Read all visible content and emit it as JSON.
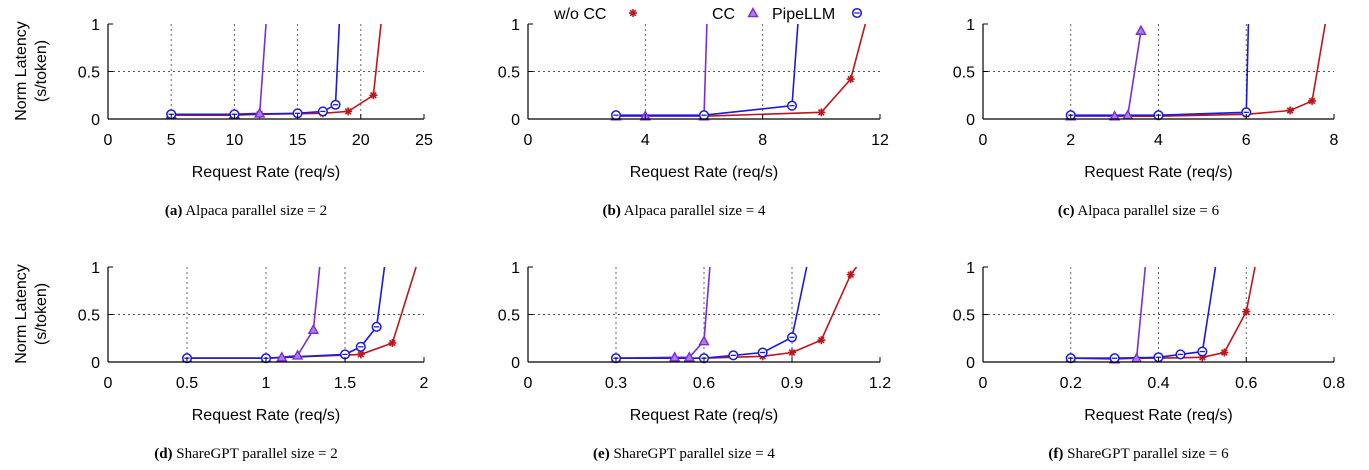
{
  "legend": {
    "items": [
      {
        "label": "w/o CC",
        "color": "#c0141c",
        "marker": "star"
      },
      {
        "label": "CC",
        "color": "#7a2fd6",
        "marker": "triangle"
      },
      {
        "label": "PipeLLM",
        "color": "#1a1adf",
        "marker": "circle"
      }
    ]
  },
  "ylabel_line1": "Norm Latency",
  "ylabel_line2": "(s/token)",
  "chart_data": [
    {
      "type": "line",
      "xlabel": "Request Rate (req/s)",
      "caption_tag": "(a)",
      "caption_text": "Alpaca parallel size = 2",
      "xlim": [
        0,
        25
      ],
      "xticks": [
        "0",
        "5",
        "10",
        "15",
        "20",
        "25"
      ],
      "ylim": [
        0,
        1
      ],
      "yticks": [
        "0",
        "0.5",
        "1"
      ],
      "grid": true,
      "series": [
        {
          "name": "w/o CC",
          "x": [
            5,
            10,
            12,
            17,
            19,
            21,
            21.6
          ],
          "y": [
            0.04,
            0.04,
            0.05,
            0.06,
            0.08,
            0.25,
            1.0
          ]
        },
        {
          "name": "CC",
          "x": [
            5,
            10,
            12,
            12.5
          ],
          "y": [
            0.05,
            0.05,
            0.06,
            1.0
          ]
        },
        {
          "name": "PipeLLM",
          "x": [
            5,
            10,
            15,
            17,
            18,
            18.3
          ],
          "y": [
            0.05,
            0.05,
            0.06,
            0.08,
            0.15,
            1.0
          ]
        }
      ]
    },
    {
      "type": "line",
      "xlabel": "Request Rate (req/s)",
      "caption_tag": "(b)",
      "caption_text": "Alpaca parallel size = 4",
      "xlim": [
        0,
        12
      ],
      "xticks": [
        "0",
        "4",
        "8",
        "12"
      ],
      "ylim": [
        0,
        1
      ],
      "yticks": [
        "0",
        "0.5",
        "1"
      ],
      "grid": true,
      "series": [
        {
          "name": "w/o CC",
          "x": [
            3,
            6,
            10,
            11,
            11.5
          ],
          "y": [
            0.03,
            0.03,
            0.07,
            0.42,
            1.0
          ]
        },
        {
          "name": "CC",
          "x": [
            3,
            4,
            6,
            6.1
          ],
          "y": [
            0.03,
            0.03,
            0.03,
            1.0
          ]
        },
        {
          "name": "PipeLLM",
          "x": [
            3,
            6,
            9,
            9.2
          ],
          "y": [
            0.04,
            0.04,
            0.14,
            1.0
          ]
        }
      ]
    },
    {
      "type": "line",
      "xlabel": "Request Rate (req/s)",
      "caption_tag": "(c)",
      "caption_text": "Alpaca parallel size = 6",
      "xlim": [
        0,
        8
      ],
      "xticks": [
        "0",
        "2",
        "4",
        "6",
        "8"
      ],
      "ylim": [
        0,
        1
      ],
      "yticks": [
        "0",
        "0.5",
        "1"
      ],
      "grid": true,
      "series": [
        {
          "name": "w/o CC",
          "x": [
            2,
            4,
            6,
            7,
            7.5,
            7.8
          ],
          "y": [
            0.03,
            0.03,
            0.05,
            0.09,
            0.19,
            1.0
          ]
        },
        {
          "name": "CC",
          "x": [
            2,
            3,
            3.3,
            3.6
          ],
          "y": [
            0.03,
            0.03,
            0.04,
            0.93
          ]
        },
        {
          "name": "PipeLLM",
          "x": [
            2,
            4,
            6,
            6.05
          ],
          "y": [
            0.04,
            0.04,
            0.07,
            1.0
          ]
        }
      ]
    },
    {
      "type": "line",
      "xlabel": "Request Rate (req/s)",
      "caption_tag": "(d)",
      "caption_text": "ShareGPT parallel size = 2",
      "xlim": [
        0,
        2
      ],
      "xticks": [
        "0",
        "0.5",
        "1",
        "1.5",
        "2"
      ],
      "ylim": [
        0,
        1
      ],
      "yticks": [
        "0",
        "0.5",
        "1"
      ],
      "grid": true,
      "series": [
        {
          "name": "w/o CC",
          "x": [
            0.5,
            1.0,
            1.6,
            1.8,
            1.95
          ],
          "y": [
            0.04,
            0.04,
            0.08,
            0.2,
            1.0
          ]
        },
        {
          "name": "CC",
          "x": [
            0.5,
            1.0,
            1.1,
            1.2,
            1.3,
            1.34
          ],
          "y": [
            0.04,
            0.04,
            0.05,
            0.07,
            0.34,
            1.0
          ]
        },
        {
          "name": "PipeLLM",
          "x": [
            0.5,
            1.0,
            1.5,
            1.6,
            1.7,
            1.75
          ],
          "y": [
            0.04,
            0.04,
            0.08,
            0.16,
            0.37,
            1.0
          ]
        }
      ]
    },
    {
      "type": "line",
      "xlabel": "Request Rate (req/s)",
      "caption_tag": "(e)",
      "caption_text": "ShareGPT parallel size = 4",
      "xlim": [
        0,
        1.2
      ],
      "xticks": [
        "0",
        "0.3",
        "0.6",
        "0.9",
        "1.2"
      ],
      "ylim": [
        0,
        1
      ],
      "yticks": [
        "0",
        "0.5",
        "1"
      ],
      "grid": true,
      "series": [
        {
          "name": "w/o CC",
          "x": [
            0.3,
            0.6,
            0.8,
            0.9,
            1.0,
            1.1,
            1.12
          ],
          "y": [
            0.04,
            0.04,
            0.06,
            0.1,
            0.23,
            0.92,
            1.0
          ]
        },
        {
          "name": "CC",
          "x": [
            0.3,
            0.5,
            0.55,
            0.6,
            0.62
          ],
          "y": [
            0.04,
            0.05,
            0.05,
            0.22,
            1.0
          ]
        },
        {
          "name": "PipeLLM",
          "x": [
            0.3,
            0.6,
            0.7,
            0.8,
            0.9,
            0.95
          ],
          "y": [
            0.04,
            0.04,
            0.07,
            0.1,
            0.26,
            1.0
          ]
        }
      ]
    },
    {
      "type": "line",
      "xlabel": "Request Rate (req/s)",
      "caption_tag": "(f)",
      "caption_text": "ShareGPT parallel size = 6",
      "xlim": [
        0,
        0.8
      ],
      "xticks": [
        "0",
        "0.2",
        "0.4",
        "0.6",
        "0.8"
      ],
      "ylim": [
        0,
        1
      ],
      "yticks": [
        "0",
        "0.5",
        "1"
      ],
      "grid": true,
      "series": [
        {
          "name": "w/o CC",
          "x": [
            0.2,
            0.3,
            0.4,
            0.5,
            0.55,
            0.6,
            0.62
          ],
          "y": [
            0.04,
            0.04,
            0.04,
            0.05,
            0.1,
            0.53,
            1.0
          ]
        },
        {
          "name": "CC",
          "x": [
            0.2,
            0.3,
            0.35,
            0.37
          ],
          "y": [
            0.04,
            0.03,
            0.04,
            1.0
          ]
        },
        {
          "name": "PipeLLM",
          "x": [
            0.2,
            0.3,
            0.4,
            0.45,
            0.5,
            0.53
          ],
          "y": [
            0.04,
            0.04,
            0.05,
            0.08,
            0.11,
            1.0
          ]
        }
      ]
    }
  ]
}
